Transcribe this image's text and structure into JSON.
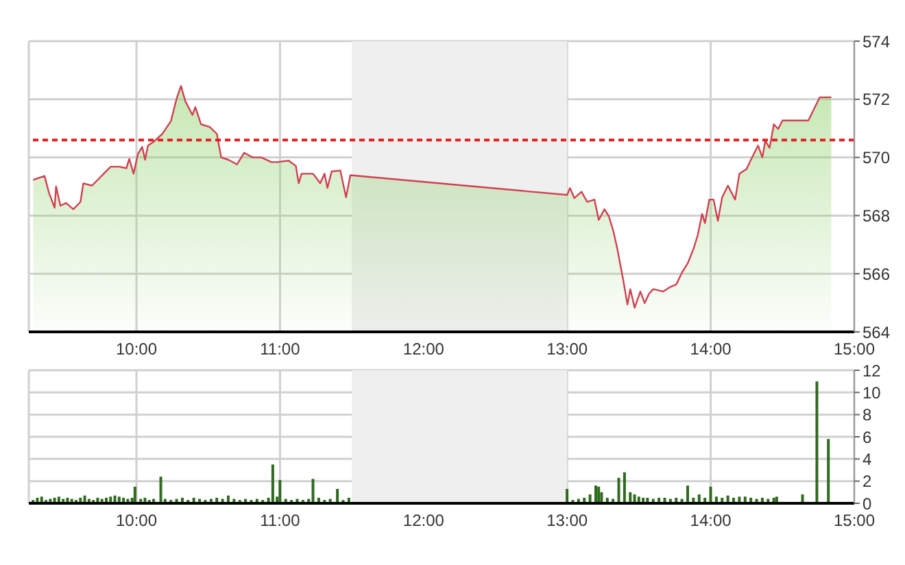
{
  "chart_data": [
    {
      "type": "area",
      "x": [
        9.281,
        9.36,
        9.39,
        9.43,
        9.44,
        9.47,
        9.51,
        9.56,
        9.61,
        9.63,
        9.69,
        9.73,
        9.82,
        9.88,
        9.93,
        9.95,
        9.98,
        10.01,
        10.04,
        10.06,
        10.08,
        10.12,
        10.18,
        10.24,
        10.28,
        10.31,
        10.34,
        10.39,
        10.41,
        10.45,
        10.51,
        10.56,
        10.59,
        10.64,
        10.7,
        10.75,
        10.81,
        10.87,
        10.94,
        10.98,
        11.06,
        11.11,
        11.13,
        11.15,
        11.23,
        11.28,
        11.31,
        11.33,
        11.36,
        11.42,
        11.46,
        11.49,
        13.0,
        13.02,
        13.05,
        13.1,
        13.14,
        13.19,
        13.22,
        13.26,
        13.29,
        13.32,
        13.35,
        13.39,
        13.42,
        13.44,
        13.47,
        13.51,
        13.54,
        13.57,
        13.6,
        13.67,
        13.72,
        13.76,
        13.8,
        13.84,
        13.88,
        13.91,
        13.94,
        13.96,
        13.99,
        14.02,
        14.05,
        14.08,
        14.12,
        14.17,
        14.2,
        14.25,
        14.28,
        14.33,
        14.36,
        14.38,
        14.41,
        14.44,
        14.47,
        14.5,
        14.68,
        14.76,
        14.84
      ],
      "series": [
        {
          "color": "#d04050",
          "values": [
            569.23,
            569.36,
            568.79,
            568.27,
            569.0,
            568.34,
            568.43,
            568.22,
            568.47,
            569.11,
            569.03,
            569.23,
            569.68,
            569.68,
            569.63,
            569.95,
            569.44,
            570.12,
            570.36,
            569.92,
            570.41,
            570.54,
            570.81,
            571.25,
            572.03,
            572.46,
            571.94,
            571.46,
            571.73,
            571.14,
            571.05,
            570.81,
            570.0,
            569.92,
            569.76,
            570.16,
            570.0,
            570.0,
            569.84,
            569.84,
            569.89,
            569.71,
            569.11,
            569.44,
            569.44,
            569.11,
            569.44,
            568.95,
            569.52,
            569.55,
            568.63,
            569.39,
            568.71,
            568.95,
            568.6,
            568.82,
            568.47,
            568.55,
            567.85,
            568.22,
            567.98,
            567.5,
            566.85,
            565.8,
            564.94,
            565.47,
            564.83,
            565.39,
            564.99,
            565.31,
            565.47,
            565.39,
            565.55,
            565.63,
            566.04,
            566.36,
            566.85,
            567.33,
            568.06,
            567.74,
            568.55,
            568.55,
            567.82,
            568.63,
            569.03,
            568.55,
            569.44,
            569.6,
            569.92,
            570.41,
            570.0,
            570.57,
            570.33,
            571.14,
            570.98,
            571.27,
            571.27,
            572.07,
            572.07
          ]
        }
      ],
      "xlim": [
        9.25,
        15
      ],
      "xticks": [
        {
          "value": 10,
          "label": "10:00"
        },
        {
          "value": 11,
          "label": "11:00"
        },
        {
          "value": 12,
          "label": "12:00"
        },
        {
          "value": 13,
          "label": "13:00"
        },
        {
          "value": 14,
          "label": "14:00"
        },
        {
          "value": 15,
          "label": "15:00"
        }
      ],
      "ylim": [
        564,
        574
      ],
      "yticks": [
        564,
        566,
        568,
        570,
        572,
        574
      ],
      "grid": true,
      "ref_lines": [
        {
          "axis": "y",
          "value": 570.6,
          "color": "#e02020",
          "line_style": "dashed"
        }
      ],
      "bands": [
        {
          "axis": "x",
          "from": 11.5,
          "to": 13,
          "color": "#efefef"
        }
      ]
    },
    {
      "type": "bar",
      "x": [
        9.28,
        9.31,
        9.34,
        9.37,
        9.4,
        9.43,
        9.46,
        9.49,
        9.52,
        9.55,
        9.58,
        9.61,
        9.64,
        9.67,
        9.7,
        9.73,
        9.76,
        9.79,
        9.82,
        9.85,
        9.88,
        9.91,
        9.94,
        9.97,
        9.99,
        10.03,
        10.06,
        10.09,
        10.12,
        10.17,
        10.2,
        10.24,
        10.28,
        10.32,
        10.36,
        10.4,
        10.44,
        10.48,
        10.52,
        10.56,
        10.6,
        10.64,
        10.68,
        10.72,
        10.76,
        10.8,
        10.84,
        10.88,
        10.92,
        10.95,
        10.98,
        11.0,
        11.04,
        11.08,
        11.12,
        11.16,
        11.2,
        11.23,
        11.27,
        11.31,
        11.35,
        11.4,
        11.44,
        11.48,
        13.0,
        13.04,
        13.08,
        13.12,
        13.16,
        13.2,
        13.22,
        13.24,
        13.28,
        13.32,
        13.36,
        13.4,
        13.44,
        13.47,
        13.5,
        13.53,
        13.56,
        13.6,
        13.64,
        13.68,
        13.72,
        13.76,
        13.8,
        13.84,
        13.88,
        13.92,
        13.96,
        14.0,
        14.04,
        14.08,
        14.12,
        14.16,
        14.2,
        14.24,
        14.28,
        14.32,
        14.36,
        14.4,
        14.44,
        14.46,
        14.64,
        14.74,
        14.82
      ],
      "series": [
        {
          "color": "#2e6b1e",
          "values": [
            0.3,
            0.5,
            0.6,
            0.3,
            0.4,
            0.5,
            0.6,
            0.4,
            0.5,
            0.4,
            0.3,
            0.5,
            0.7,
            0.4,
            0.3,
            0.5,
            0.4,
            0.5,
            0.6,
            0.7,
            0.6,
            0.5,
            0.4,
            0.5,
            1.5,
            0.4,
            0.5,
            0.3,
            0.4,
            2.4,
            0.4,
            0.3,
            0.4,
            0.5,
            0.3,
            0.5,
            0.4,
            0.3,
            0.4,
            0.5,
            0.4,
            0.7,
            0.4,
            0.3,
            0.4,
            0.3,
            0.4,
            0.3,
            0.5,
            3.5,
            0.6,
            2.1,
            0.4,
            0.3,
            0.4,
            0.3,
            0.4,
            2.2,
            0.5,
            0.3,
            0.4,
            1.3,
            0.3,
            0.5,
            1.3,
            0.3,
            0.4,
            0.5,
            0.8,
            1.6,
            1.5,
            1.0,
            0.5,
            0.4,
            2.3,
            2.8,
            1.0,
            0.8,
            0.6,
            0.5,
            0.5,
            0.4,
            0.5,
            0.5,
            0.4,
            0.5,
            0.4,
            1.6,
            0.5,
            0.8,
            0.5,
            1.5,
            0.6,
            0.5,
            0.7,
            0.5,
            0.6,
            0.6,
            0.5,
            0.4,
            0.5,
            0.4,
            0.5,
            0.6,
            0.8,
            11.0,
            5.8
          ]
        }
      ],
      "xlim": [
        9.25,
        15
      ],
      "xticks": [
        {
          "value": 10,
          "label": "10:00"
        },
        {
          "value": 11,
          "label": "11:00"
        },
        {
          "value": 12,
          "label": "12:00"
        },
        {
          "value": 13,
          "label": "13:00"
        },
        {
          "value": 14,
          "label": "14:00"
        },
        {
          "value": 15,
          "label": "15:00"
        }
      ],
      "ylim": [
        0,
        12
      ],
      "yticks": [
        0,
        2,
        4,
        6,
        8,
        10,
        12
      ],
      "grid": true,
      "bands": [
        {
          "axis": "x",
          "from": 11.5,
          "to": 13,
          "color": "#efefef"
        }
      ]
    }
  ]
}
